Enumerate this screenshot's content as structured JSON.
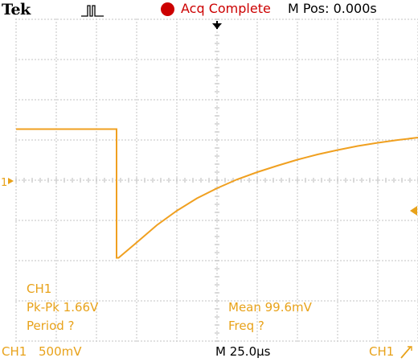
{
  "header": {
    "brand": "Tek",
    "trigger_state_icon": "pulse-waveform-icon",
    "acq_status": "Acq Complete",
    "status_color": "#cc0000",
    "m_pos": "M Pos: 0.000s"
  },
  "display": {
    "trace_color": "#f0a020",
    "grid_color": "#b8b8b8",
    "background": "#ffffff",
    "ch1_ground_marker": "1",
    "trigger_position_marker": "arrow-down-icon",
    "trigger_level_marker": "arrow-left-icon"
  },
  "measurements": {
    "channel": "CH1",
    "pkpk": "Pk-Pk 1.66V",
    "period": "Period ?",
    "mean": "Mean 99.6mV",
    "freq": "Freq ?"
  },
  "footer": {
    "ch1_label": "CH1",
    "ch1_scale": "500mV",
    "timebase": "M 25.0µs",
    "trigger_source": "CH1",
    "trigger_slope_icon": "rising-edge-icon"
  },
  "chart_data": {
    "type": "line",
    "x_unit": "divisions",
    "y_unit": "divisions",
    "xlim": [
      0,
      10
    ],
    "ylim": [
      -4,
      4
    ],
    "grid": true,
    "series": [
      {
        "values_note": "",
        "x": [
          0,
          2.5,
          2.5,
          2.55,
          3,
          3.5,
          4,
          4.5,
          5,
          5.5,
          6,
          6.5,
          7,
          7.5,
          8,
          8.5,
          9,
          9.5,
          10
        ],
        "y": [
          1.27,
          1.27,
          -1.93,
          -1.93,
          -1.55,
          -1.12,
          -0.76,
          -0.45,
          -0.2,
          0.02,
          0.2,
          0.36,
          0.51,
          0.64,
          0.75,
          0.85,
          0.93,
          1.0,
          1.06
        ]
      }
    ]
  }
}
